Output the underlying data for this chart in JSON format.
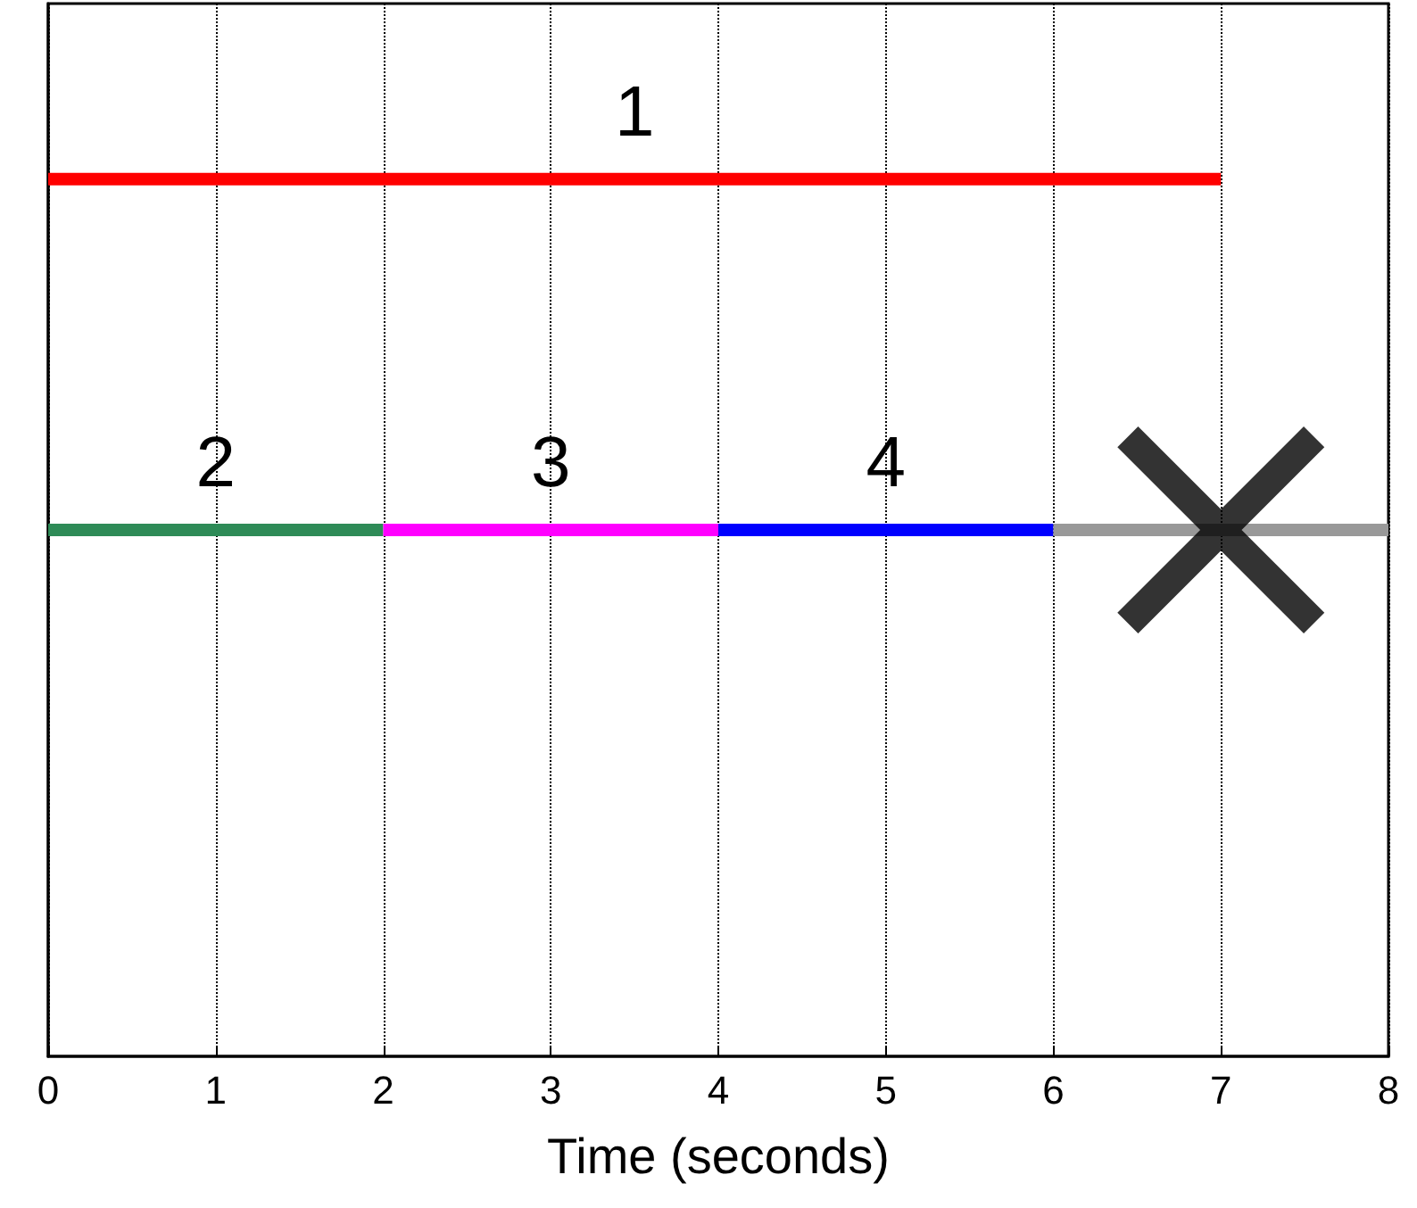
{
  "chart_data": {
    "type": "bar",
    "orientation": "horizontal",
    "stacked": true,
    "categories": [
      null,
      null,
      null
    ],
    "series": [
      {
        "name": "1",
        "color": "#ff0000",
        "values": [
          7,
          null,
          null
        ]
      },
      {
        "name": "2",
        "color": "#2e8b57",
        "values": [
          null,
          2,
          null
        ]
      },
      {
        "name": "3",
        "color": "#ff00ff",
        "values": [
          null,
          2,
          null
        ]
      },
      {
        "name": "4",
        "color": "#0000ff",
        "values": [
          null,
          2,
          null
        ]
      },
      {
        "color": "#999999",
        "values": [
          null,
          2,
          null
        ]
      },
      {
        "type": "scatter",
        "marker": "cross",
        "color": "#000000",
        "values": [
          null,
          7,
          null
        ]
      }
    ],
    "xlim": [
      0,
      8
    ],
    "xticks": [
      0,
      1,
      2,
      3,
      4,
      5,
      6,
      7,
      8
    ],
    "xlabel": "Time (seconds)",
    "grid": "x",
    "tick_labels": "x"
  }
}
